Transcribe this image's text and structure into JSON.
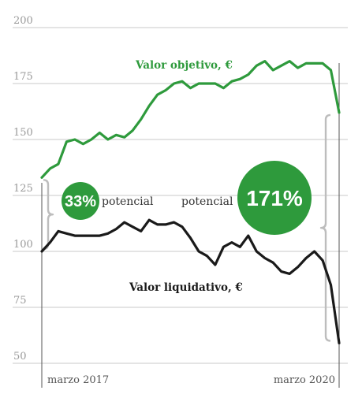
{
  "colors": {
    "green": "#2e9a3c",
    "black": "#1a1a1a",
    "grid": "#c8c8c8",
    "bracket": "#bdbdbd"
  },
  "chart_data": {
    "type": "line",
    "ylim": [
      50,
      200
    ],
    "yticks": [
      50,
      75,
      100,
      125,
      150,
      175,
      200
    ],
    "xtick_labels": [
      "marzo 2017",
      "marzo 2020"
    ],
    "grid": true,
    "series": [
      {
        "name": "Valor objetivo, €",
        "color": "#2e9a3c",
        "values": [
          133,
          137,
          139,
          149,
          150,
          148,
          150,
          153,
          150,
          152,
          151,
          154,
          159,
          165,
          170,
          172,
          175,
          176,
          173,
          175,
          175,
          175,
          173,
          176,
          177,
          179,
          183,
          185,
          181,
          183,
          185,
          182,
          184,
          184,
          184,
          181,
          162
        ]
      },
      {
        "name": "Valor liquidativo, €",
        "color": "#1a1a1a",
        "values": [
          100,
          104,
          109,
          108,
          107,
          107,
          107,
          107,
          108,
          110,
          113,
          111,
          109,
          114,
          112,
          112,
          113,
          111,
          106,
          100,
          98,
          94,
          102,
          104,
          102,
          107,
          100,
          97,
          95,
          91,
          90,
          93,
          97,
          100,
          96,
          85,
          59
        ]
      }
    ],
    "annotations": [
      {
        "percent": "33%",
        "text": "potencial"
      },
      {
        "percent": "171%",
        "text": "potencial"
      }
    ]
  }
}
